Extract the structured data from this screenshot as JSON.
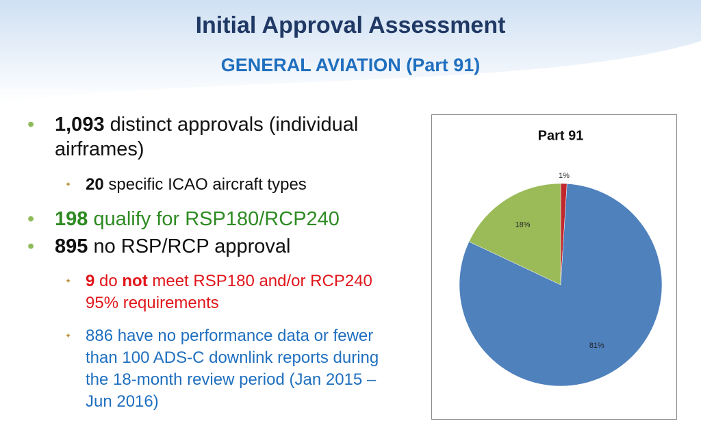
{
  "header": {
    "title": "Initial Approval Assessment",
    "subtitle": "GENERAL AVIATION (Part 91)"
  },
  "bullets": [
    {
      "parts": [
        "1,093",
        " distinct approvals (individual airframes)"
      ],
      "sub": [
        {
          "parts": [
            "20",
            " specific ICAO aircraft types"
          ]
        }
      ]
    },
    {
      "parts": [
        "198",
        " qualify for RSP180/RCP240"
      ]
    },
    {
      "parts": [
        "895",
        " no RSP/RCP approval"
      ],
      "sub": [
        {
          "parts": [
            "9",
            " do ",
            "not",
            " meet RSP180 and/or RCP240 95% requirements"
          ]
        },
        {
          "parts": [
            "886 have no performance data or fewer than 100 ADS-C downlink reports during the 18-month review period (Jan 2015 – Jun 2016)"
          ]
        }
      ]
    }
  ],
  "chart_data": {
    "type": "pie",
    "title": "Part 91",
    "values": [
      1,
      81,
      18
    ],
    "value_labels": [
      "1%",
      "81%",
      "18%"
    ],
    "colors": [
      "#c0282d",
      "#4f81bd",
      "#9bbb59"
    ]
  }
}
